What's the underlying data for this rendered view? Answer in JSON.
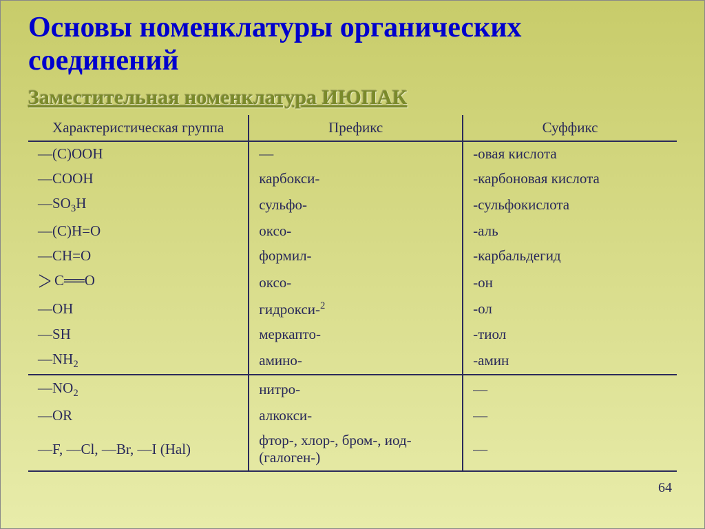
{
  "title": "Основы номенклатуры органических соединений",
  "subtitle": "Заместительная номенклатура ИЮПАК",
  "page_number": "64",
  "table": {
    "headers": {
      "group": "Характеристическая группа",
      "prefix": "Префикс",
      "suffix": "Суффикс"
    },
    "rows": [
      {
        "group_html": "—(C)OOH",
        "prefix": "—",
        "suffix": "-овая кислота",
        "break": false
      },
      {
        "group_html": "—COOH",
        "prefix": "карбокси-",
        "suffix": "-карбоновая кислота",
        "break": false
      },
      {
        "group_html": "—SO<span class=\"sub\">3</span>H",
        "prefix": "сульфо-",
        "suffix": "-сульфокислота",
        "break": false
      },
      {
        "group_html": "—(C)H=O",
        "prefix": "оксо-",
        "suffix": "-аль",
        "break": false
      },
      {
        "group_html": "—CH=O",
        "prefix": "формил-",
        "suffix": "-карбальдегид",
        "break": false
      },
      {
        "group_html": "<span class=\"ketone\"><svg width=\"22\" height=\"22\" viewBox=\"0 0 22 22\"><line x1=\"2\" y1=\"2\" x2=\"18\" y2=\"11\" stroke=\"#2a2a5a\" stroke-width=\"1.4\"/><line x1=\"2\" y1=\"20\" x2=\"18\" y2=\"11\" stroke=\"#2a2a5a\" stroke-width=\"1.4\"/></svg>C══O</span>",
        "prefix": "оксо-",
        "suffix": "-он",
        "break": false
      },
      {
        "group_html": "—OH",
        "prefix": "гидрокси-<span class=\"sup\">2</span>",
        "suffix": "-ол",
        "break": false
      },
      {
        "group_html": "—SH",
        "prefix": "меркапто-",
        "suffix": "-тиол",
        "break": false
      },
      {
        "group_html": "—NH<span class=\"sub\">2</span>",
        "prefix": "амино-",
        "suffix": "-амин",
        "break": false
      },
      {
        "group_html": "—NO<span class=\"sub\">2</span>",
        "prefix": "нитро-",
        "suffix": "—",
        "break": true
      },
      {
        "group_html": "—OR",
        "prefix": "алкокси-",
        "suffix": "—",
        "break": false
      },
      {
        "group_html": "—F, —Cl, —Br, —I (Hal)",
        "prefix": "фтор-, хлор-, бром-, иод- (галоген-)",
        "suffix": "—",
        "break": false
      }
    ]
  }
}
